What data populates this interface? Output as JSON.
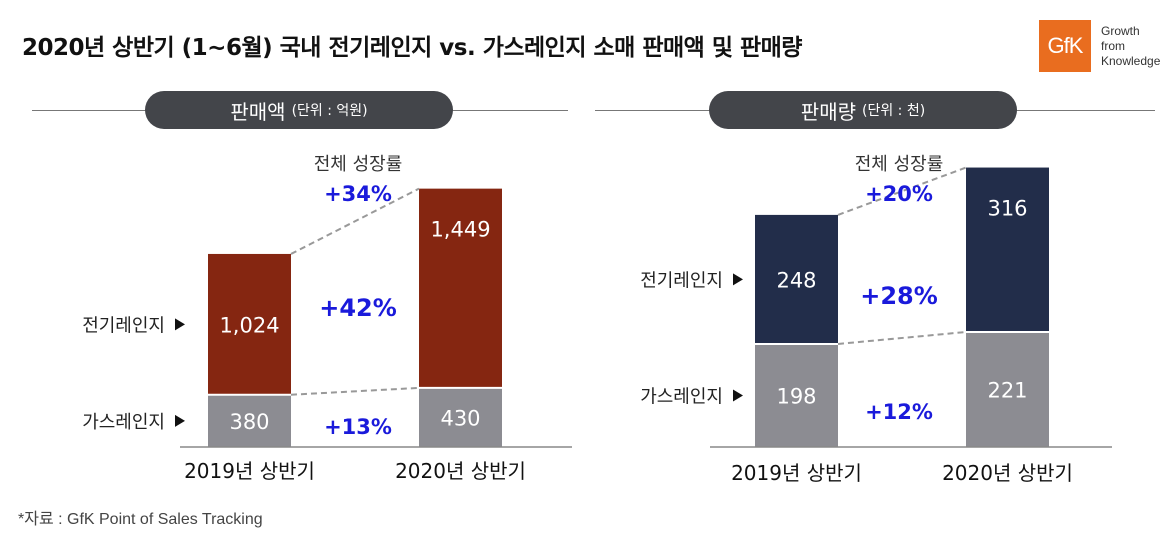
{
  "title": "2020년 상반기 (1~6월) 국내 전기레인지 vs. 가스레인지 소매 판매액 및 판매량",
  "logo": {
    "mark": "GfK",
    "tagline": [
      "Growth",
      "from",
      "Knowledge"
    ],
    "color": "#e96d1f"
  },
  "source": "*자료 : GfK Point of Sales Tracking",
  "colors": {
    "gas": "#8c8c92",
    "electric_value": "#852611",
    "electric_volume": "#222d4a",
    "growth_text": "#1a1adb",
    "pill": "#43454a"
  },
  "chart_data": [
    {
      "type": "bar",
      "stacked": true,
      "title": "판매액",
      "unit": "(단위 : 억원)",
      "categories": [
        "2019년 상반기",
        "2020년 상반기"
      ],
      "series": [
        {
          "name": "가스레인지",
          "values": [
            380,
            430
          ],
          "growth": "+13%"
        },
        {
          "name": "전기레인지",
          "values": [
            1024,
            1449
          ],
          "growth": "+42%"
        }
      ],
      "value_labels": {
        "가스레인지": [
          "380",
          "430"
        ],
        "전기레인지": [
          "1,024",
          "1,449"
        ]
      },
      "total_growth_label": "전체 성장률",
      "total_growth": "+34%"
    },
    {
      "type": "bar",
      "stacked": true,
      "title": "판매량",
      "unit": "(단위 : 천)",
      "categories": [
        "2019년 상반기",
        "2020년 상반기"
      ],
      "series": [
        {
          "name": "가스레인지",
          "values": [
            198,
            221
          ],
          "growth": "+12%"
        },
        {
          "name": "전기레인지",
          "values": [
            248,
            316
          ],
          "growth": "+28%"
        }
      ],
      "value_labels": {
        "가스레인지": [
          "198",
          "221"
        ],
        "전기레인지": [
          "248",
          "316"
        ]
      },
      "total_growth_label": "전체 성장률",
      "total_growth": "+20%"
    }
  ]
}
